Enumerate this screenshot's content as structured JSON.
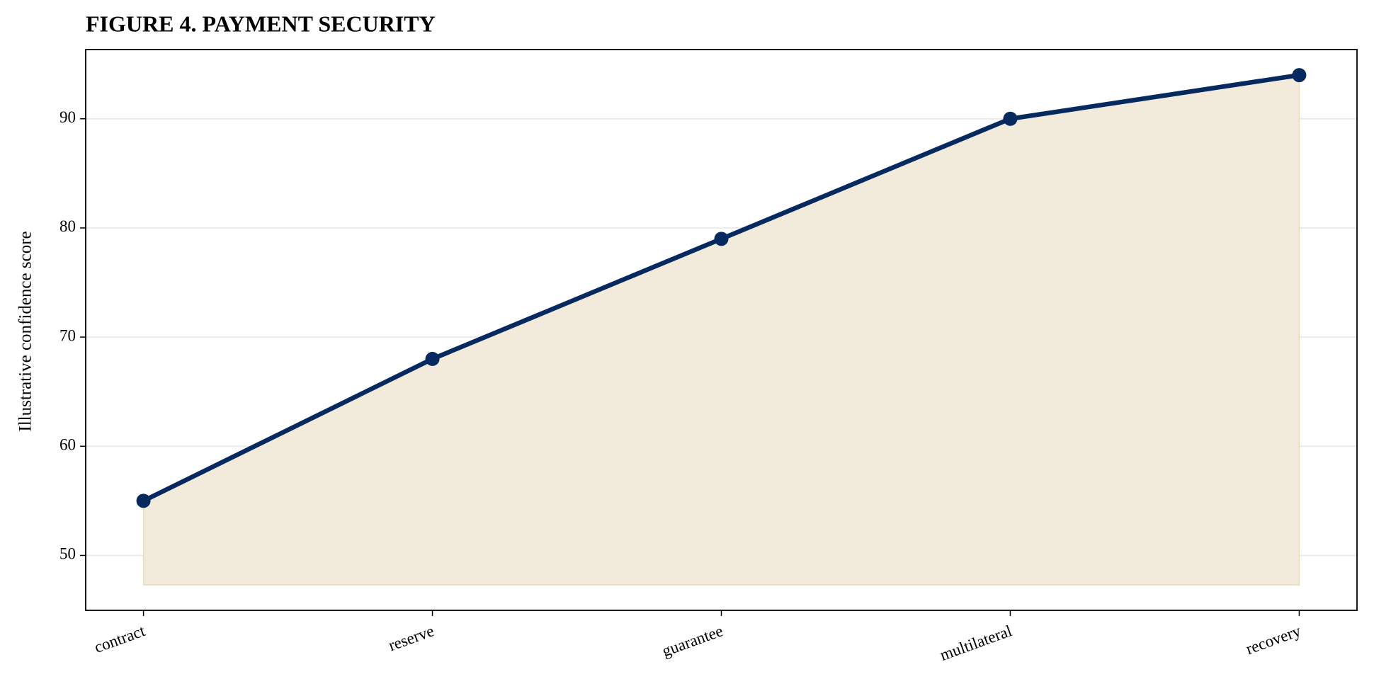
{
  "chart_data": {
    "type": "line",
    "title": "FIGURE 4. PAYMENT SECURITY",
    "y_label": "Illustrative confidence score",
    "categories": [
      "contract",
      "reserve",
      "guarantee",
      "multilateral",
      "recovery"
    ],
    "values": [
      55,
      68,
      79,
      90,
      94
    ],
    "color": "#062a5f",
    "fill_color": "#f2ebdc",
    "fill_base": 47.3,
    "ylim": [
      44.97,
      96.34
    ],
    "yticks": [
      50,
      60,
      70,
      80,
      90
    ],
    "grid": true
  }
}
